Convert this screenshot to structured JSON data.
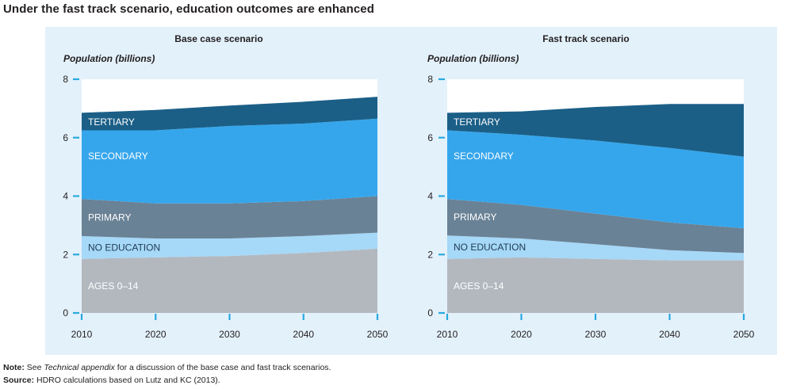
{
  "title": "Under the fast track scenario, education outcomes are enhanced",
  "note": {
    "label": "Note:",
    "before": "See ",
    "italic": "Technical appendix",
    "after": " for a discussion of the base case and fast track scenarios."
  },
  "source": {
    "label": "Source:",
    "text": "HDRO calculations based on Lutz and KC (2013)."
  },
  "colors": {
    "ages": "#b3b8bf",
    "no_education": "#a6d8f7",
    "primary": "#6a8296",
    "secondary": "#35a6ec",
    "tertiary": "#1b5f87",
    "axis_tick": "#29a9df"
  },
  "chart_data": [
    {
      "type": "area",
      "stacked": true,
      "title": "Base case scenario",
      "ylabel": "Population (billions)",
      "xlabel": "",
      "x": [
        2010,
        2020,
        2030,
        2040,
        2050
      ],
      "ylim": [
        0,
        8
      ],
      "yticks": [
        0,
        2,
        4,
        6,
        8
      ],
      "grid": false,
      "series": [
        {
          "name": "AGES 0–14",
          "values": [
            1.85,
            1.9,
            1.95,
            2.05,
            2.2
          ]
        },
        {
          "name": "NO EDUCATION",
          "values": [
            0.78,
            0.65,
            0.6,
            0.58,
            0.55
          ]
        },
        {
          "name": "PRIMARY",
          "values": [
            1.27,
            1.2,
            1.2,
            1.2,
            1.25
          ]
        },
        {
          "name": "SECONDARY",
          "values": [
            2.35,
            2.5,
            2.65,
            2.65,
            2.65
          ]
        },
        {
          "name": "TERTIARY",
          "values": [
            0.6,
            0.7,
            0.7,
            0.75,
            0.75
          ]
        }
      ]
    },
    {
      "type": "area",
      "stacked": true,
      "title": "Fast track scenario",
      "ylabel": "Population (billions)",
      "xlabel": "",
      "x": [
        2010,
        2020,
        2030,
        2040,
        2050
      ],
      "ylim": [
        0,
        8
      ],
      "yticks": [
        0,
        2,
        4,
        6,
        8
      ],
      "grid": false,
      "series": [
        {
          "name": "AGES 0–14",
          "values": [
            1.85,
            1.9,
            1.85,
            1.8,
            1.8
          ]
        },
        {
          "name": "NO EDUCATION",
          "values": [
            0.8,
            0.65,
            0.5,
            0.35,
            0.25
          ]
        },
        {
          "name": "PRIMARY",
          "values": [
            1.25,
            1.15,
            1.05,
            0.95,
            0.85
          ]
        },
        {
          "name": "SECONDARY",
          "values": [
            2.35,
            2.4,
            2.5,
            2.55,
            2.45
          ]
        },
        {
          "name": "TERTIARY",
          "values": [
            0.6,
            0.8,
            1.15,
            1.5,
            1.8
          ]
        }
      ]
    }
  ]
}
